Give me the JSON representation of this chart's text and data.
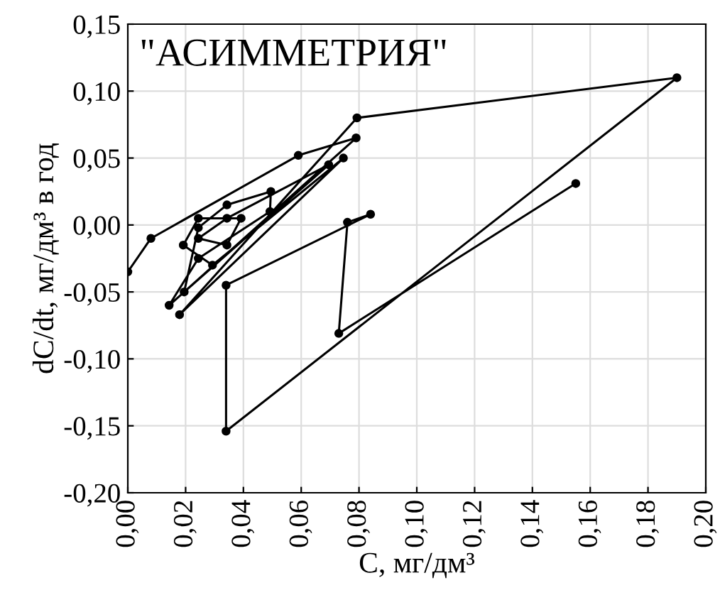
{
  "chart_data": {
    "type": "line",
    "xlabel": "C, мг/дм³",
    "ylabel": "dC/dt, мг/дм³ в год",
    "annotations": [
      "\"АСИММЕТРИЯ\""
    ],
    "xlim": [
      0,
      0.2
    ],
    "ylim": [
      -0.2,
      0.15
    ],
    "xticks": [
      {
        "value": 0,
        "label": "0,00"
      },
      {
        "value": 0.02,
        "label": "0,02"
      },
      {
        "value": 0.04,
        "label": "0,04"
      },
      {
        "value": 0.06,
        "label": "0,06"
      },
      {
        "value": 0.08,
        "label": "0,08"
      },
      {
        "value": 0.1,
        "label": "0,10"
      },
      {
        "value": 0.12,
        "label": "0,12"
      },
      {
        "value": 0.14,
        "label": "0,14"
      },
      {
        "value": 0.16,
        "label": "0,16"
      },
      {
        "value": 0.18,
        "label": "0,18"
      },
      {
        "value": 0.2,
        "label": "0,20"
      }
    ],
    "yticks": [
      {
        "value": -0.2,
        "label": "-0,20"
      },
      {
        "value": -0.15,
        "label": "-0,15"
      },
      {
        "value": -0.1,
        "label": "-0,10"
      },
      {
        "value": -0.05,
        "label": "-0,05"
      },
      {
        "value": 0,
        "label": "0,00"
      },
      {
        "value": 0.05,
        "label": "0,05"
      },
      {
        "value": 0.1,
        "label": "0,10"
      },
      {
        "value": 0.15,
        "label": "0,15"
      }
    ],
    "grid": true,
    "marker": "circle",
    "line_style": "solid",
    "series": [
      {
        "color": "#000000",
        "x": [
          0.0,
          0.008,
          0.059,
          0.079,
          0.0195,
          0.0244,
          0.0343,
          0.0495,
          0.0492,
          0.0244,
          0.0143,
          0.0695,
          0.0343,
          0.0244,
          0.0343,
          0.0392,
          0.0244,
          0.0192,
          0.0293,
          0.0746,
          0.0179,
          0.0793,
          0.19,
          0.034,
          0.034,
          0.084,
          0.076,
          0.073,
          0.155
        ],
        "values": [
          -0.035,
          -0.01,
          0.052,
          0.065,
          -0.05,
          -0.002,
          0.015,
          0.025,
          0.01,
          -0.025,
          -0.06,
          0.045,
          0.005,
          -0.01,
          -0.015,
          0.005,
          0.005,
          -0.015,
          -0.03,
          0.05,
          -0.067,
          0.08,
          0.11,
          -0.154,
          -0.045,
          0.008,
          0.002,
          -0.081,
          0.031
        ]
      }
    ]
  }
}
